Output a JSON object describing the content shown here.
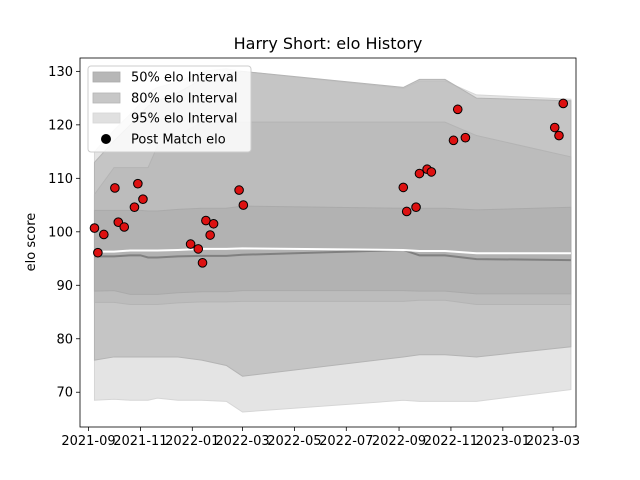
{
  "chart_data": {
    "type": "scatter",
    "title": "Harry Short: elo History",
    "xlabel": "",
    "ylabel": "elo score",
    "x_axis": "date",
    "xlim": [
      "2021-08-22",
      "2023-03-28"
    ],
    "ylim": [
      63.5,
      132.5
    ],
    "x_ticks": [
      "2021-09",
      "2021-11",
      "2022-01",
      "2022-03",
      "2022-05",
      "2022-07",
      "2022-09",
      "2022-11",
      "2023-01",
      "2023-03"
    ],
    "x_tick_labels": [
      "2021-09",
      "2021-11",
      "2022-01",
      "2022-03",
      "2022-05",
      "2022-07",
      "2022-09",
      "2022-11",
      "2023-01",
      "2023-03"
    ],
    "y_ticks": [
      70,
      80,
      90,
      100,
      110,
      120,
      130
    ],
    "grid": false,
    "legend": {
      "placement": "top-left",
      "entries": [
        "50% elo Interval",
        "80% elo Interval",
        "95% elo Interval",
        "Post Match elo"
      ]
    },
    "colors": {
      "band50": "#aaaaaa",
      "band80": "#b4b4b4",
      "band95": "#d6d6d6",
      "mean_line": "#ffffff",
      "median_line": "#808080",
      "point_fill": "#dd1111",
      "point_edge": "#000000"
    },
    "bands": {
      "dates": [
        "2021-09-08",
        "2021-10-01",
        "2021-10-20",
        "2021-11-01",
        "2021-11-10",
        "2021-11-21",
        "2021-12-15",
        "2022-01-12",
        "2022-02-10",
        "2022-03-01",
        "2022-09-06",
        "2022-09-25",
        "2022-10-25",
        "2022-12-01",
        "2023-03-22"
      ],
      "mean": [
        96.3,
        96.3,
        96.5,
        96.5,
        96.5,
        96.5,
        96.6,
        96.8,
        96.8,
        96.9,
        96.6,
        96.4,
        96.4,
        96.0,
        96.0
      ],
      "median": [
        95.4,
        95.4,
        95.6,
        95.6,
        95.2,
        95.2,
        95.4,
        95.5,
        95.5,
        95.7,
        96.6,
        95.6,
        95.6,
        94.9,
        94.7
      ],
      "p50_lower": [
        88.9,
        89.0,
        88.3,
        88.3,
        88.3,
        88.3,
        88.6,
        88.8,
        88.8,
        89.0,
        89.0,
        88.9,
        88.9,
        88.4,
        88.4
      ],
      "p50_upper": [
        104.0,
        104.0,
        104.0,
        104.0,
        103.9,
        103.9,
        104.2,
        104.4,
        104.4,
        104.8,
        104.4,
        104.4,
        104.4,
        104.1,
        104.6
      ],
      "p80_lower": [
        86.8,
        86.8,
        86.4,
        86.4,
        86.4,
        86.4,
        86.7,
        86.9,
        86.9,
        87.0,
        87.0,
        87.2,
        87.2,
        86.4,
        86.4
      ],
      "p80_upper": [
        107.0,
        112.0,
        112.0,
        112.0,
        112.0,
        116.0,
        118.0,
        120.5,
        120.5,
        120.5,
        120.5,
        120.5,
        120.5,
        118.0,
        114.0
      ],
      "p95_lower": [
        76.0,
        76.6,
        76.6,
        76.6,
        76.6,
        76.6,
        76.6,
        76.0,
        75.0,
        73.0,
        76.6,
        77.0,
        77.0,
        76.6,
        78.5
      ],
      "p95_upper": [
        113.0,
        117.0,
        120.0,
        122.0,
        123.5,
        124.5,
        126.0,
        128.5,
        129.5,
        130.0,
        127.0,
        128.5,
        128.5,
        125.0,
        124.5
      ],
      "outer_lower": [
        68.5,
        68.7,
        68.5,
        68.5,
        68.5,
        68.9,
        68.5,
        68.5,
        68.3,
        66.3,
        68.5,
        68.3,
        68.3,
        68.3,
        70.5
      ],
      "outer_upper": [
        115.0,
        119.0,
        122.0,
        124.0,
        126.0,
        127.0,
        128.0,
        130.0,
        130.5,
        130.0,
        126.8,
        128.2,
        128.2,
        125.6,
        124.8
      ]
    },
    "points": [
      {
        "x": "2021-09-08",
        "y": 100.7
      },
      {
        "x": "2021-09-12",
        "y": 96.1
      },
      {
        "x": "2021-09-19",
        "y": 99.5
      },
      {
        "x": "2021-10-02",
        "y": 108.2
      },
      {
        "x": "2021-10-06",
        "y": 101.8
      },
      {
        "x": "2021-10-13",
        "y": 100.9
      },
      {
        "x": "2021-10-25",
        "y": 104.6
      },
      {
        "x": "2021-10-29",
        "y": 109.0
      },
      {
        "x": "2021-11-04",
        "y": 106.1
      },
      {
        "x": "2021-12-30",
        "y": 97.7
      },
      {
        "x": "2022-01-08",
        "y": 96.8
      },
      {
        "x": "2022-01-13",
        "y": 94.2
      },
      {
        "x": "2022-01-17",
        "y": 102.1
      },
      {
        "x": "2022-01-22",
        "y": 99.4
      },
      {
        "x": "2022-01-26",
        "y": 101.5
      },
      {
        "x": "2022-02-25",
        "y": 107.8
      },
      {
        "x": "2022-03-02",
        "y": 105.0
      },
      {
        "x": "2022-09-06",
        "y": 108.3
      },
      {
        "x": "2022-09-10",
        "y": 103.8
      },
      {
        "x": "2022-09-21",
        "y": 104.6
      },
      {
        "x": "2022-09-25",
        "y": 110.9
      },
      {
        "x": "2022-10-04",
        "y": 111.7
      },
      {
        "x": "2022-10-09",
        "y": 111.2
      },
      {
        "x": "2022-11-04",
        "y": 117.1
      },
      {
        "x": "2022-11-09",
        "y": 122.9
      },
      {
        "x": "2022-11-18",
        "y": 117.6
      },
      {
        "x": "2023-03-03",
        "y": 119.5
      },
      {
        "x": "2023-03-08",
        "y": 118.0
      },
      {
        "x": "2023-03-13",
        "y": 124.0
      }
    ]
  }
}
